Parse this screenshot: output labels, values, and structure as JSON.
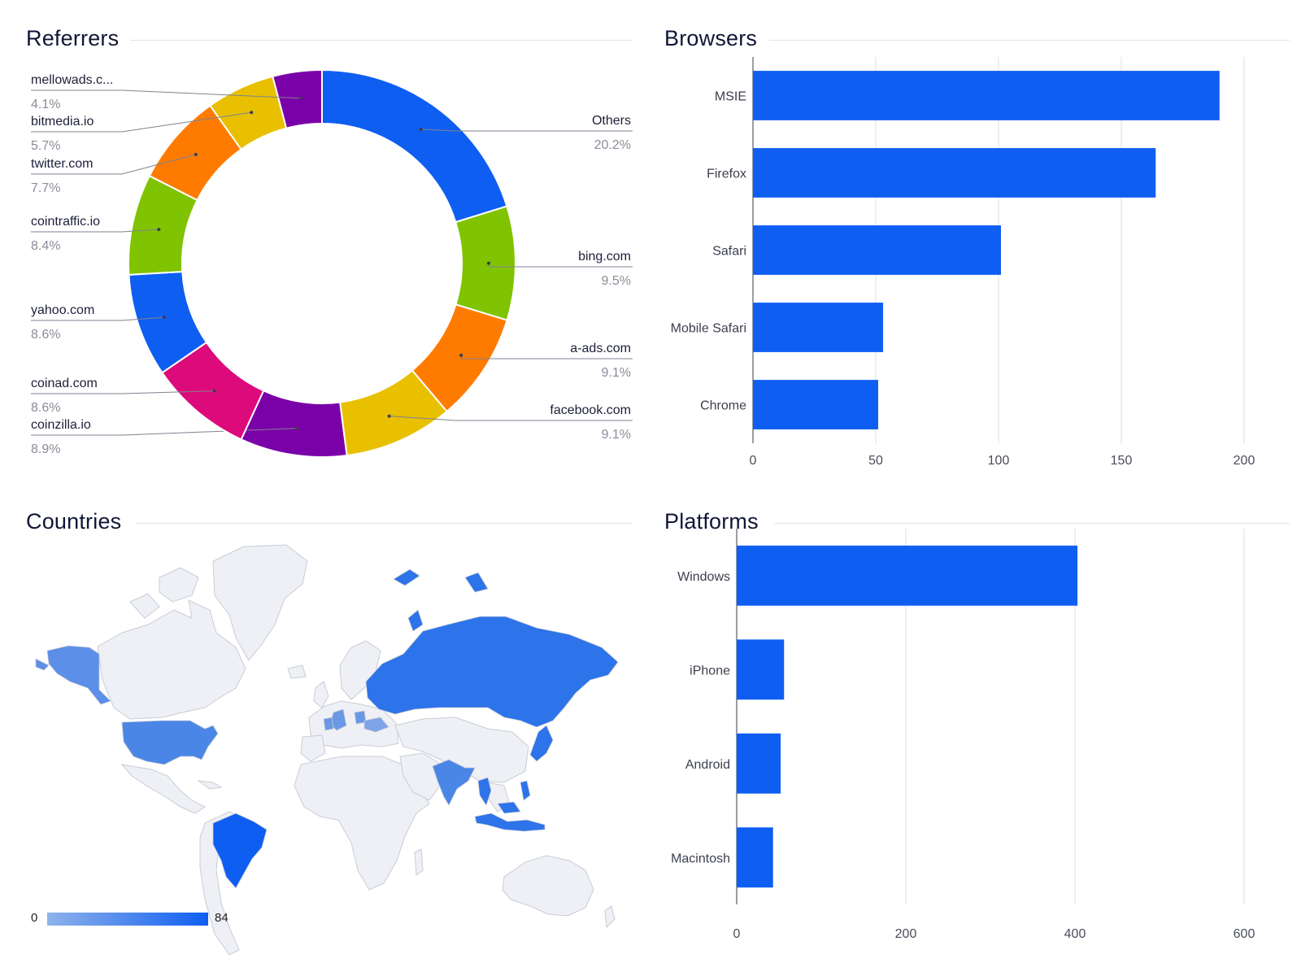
{
  "panels": {
    "referrers": {
      "title": "Referrers"
    },
    "browsers": {
      "title": "Browsers"
    },
    "countries": {
      "title": "Countries"
    },
    "platforms": {
      "title": "Platforms"
    }
  },
  "chart_data": [
    {
      "id": "referrers",
      "type": "pie",
      "donut": true,
      "title": "Referrers",
      "slices": [
        {
          "label": "Others",
          "value": 20.2,
          "pct": "20.2%",
          "color": "#0f5ef2"
        },
        {
          "label": "bing.com",
          "value": 9.5,
          "pct": "9.5%",
          "color": "#80c300"
        },
        {
          "label": "a-ads.com",
          "value": 9.1,
          "pct": "9.1%",
          "color": "#ff7b00"
        },
        {
          "label": "facebook.com",
          "value": 9.1,
          "pct": "9.1%",
          "color": "#e8c000"
        },
        {
          "label": "coinzilla.io",
          "value": 8.9,
          "pct": "8.9%",
          "color": "#7a00a8"
        },
        {
          "label": "coinad.com",
          "value": 8.6,
          "pct": "8.6%",
          "color": "#dd0a7b"
        },
        {
          "label": "yahoo.com",
          "value": 8.6,
          "pct": "8.6%",
          "color": "#0f5ef2"
        },
        {
          "label": "cointraffic.io",
          "value": 8.4,
          "pct": "8.4%",
          "color": "#80c300"
        },
        {
          "label": "twitter.com",
          "value": 7.7,
          "pct": "7.7%",
          "color": "#ff7b00"
        },
        {
          "label": "bitmedia.io",
          "value": 5.7,
          "pct": "5.7%",
          "color": "#e8c000"
        },
        {
          "label": "mellowads.c...",
          "value": 4.1,
          "pct": "4.1%",
          "color": "#7a00a8"
        }
      ]
    },
    {
      "id": "browsers",
      "type": "bar",
      "orientation": "horizontal",
      "title": "Browsers",
      "categories": [
        "MSIE",
        "Firefox",
        "Safari",
        "Mobile Safari",
        "Chrome"
      ],
      "values": [
        190,
        164,
        101,
        53,
        51
      ],
      "xlim": [
        0,
        200
      ],
      "xticks": [
        0,
        50,
        100,
        150,
        200
      ],
      "grid": true,
      "color": "#0f5ef2"
    },
    {
      "id": "platforms",
      "type": "bar",
      "orientation": "horizontal",
      "title": "Platforms",
      "categories": [
        "Windows",
        "iPhone",
        "Android",
        "Macintosh"
      ],
      "values": [
        403,
        56,
        52,
        43
      ],
      "xlim": [
        0,
        600
      ],
      "xticks": [
        0,
        200,
        400,
        600
      ],
      "grid": true,
      "color": "#0f5ef2"
    },
    {
      "id": "countries",
      "type": "heatmap",
      "title": "Countries",
      "legend": {
        "min": "0",
        "max": "84",
        "color_min": "#8fb2ea",
        "color_max": "#0f5ef2"
      },
      "highlighted_regions": [
        {
          "region": "Alaska / Canada west",
          "level": 0.55
        },
        {
          "region": "United States",
          "level": 0.6
        },
        {
          "region": "Brazil",
          "level": 1.0
        },
        {
          "region": "Russia",
          "level": 0.75
        },
        {
          "region": "India",
          "level": 0.5
        },
        {
          "region": "Indonesia",
          "level": 0.7
        },
        {
          "region": "Thailand",
          "level": 0.6
        },
        {
          "region": "Philippines",
          "level": 0.6
        },
        {
          "region": "Japan",
          "level": 0.6
        },
        {
          "region": "Germany",
          "level": 0.5
        },
        {
          "region": "Ukraine",
          "level": 0.45
        },
        {
          "region": "Poland",
          "level": 0.5
        }
      ],
      "colors": {
        "land": "#eef0f6",
        "border": "#c9ccd6"
      }
    }
  ]
}
